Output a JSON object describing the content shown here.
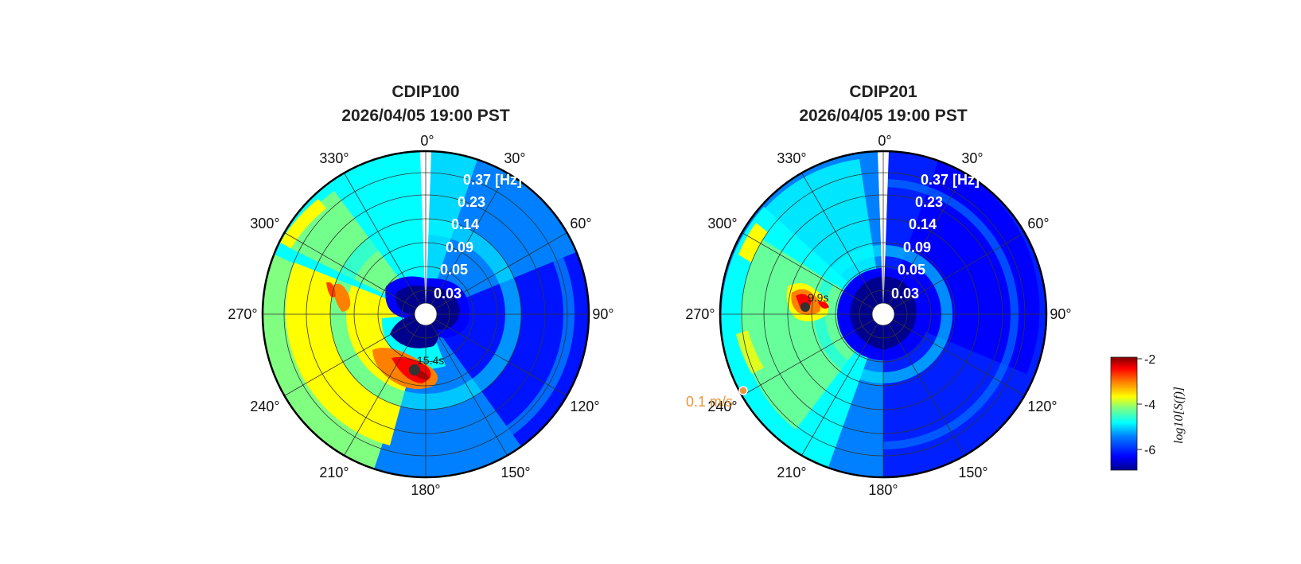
{
  "chart_data": [
    {
      "type": "heatmap",
      "subtype": "polar-directional-spectrum",
      "title": "CDIP100",
      "subtitle": "2026/04/05 19:00 PST",
      "angular_ticks": [
        "0°",
        "30°",
        "60°",
        "90°",
        "120°",
        "150°",
        "180°",
        "210°",
        "240°",
        "270°",
        "300°",
        "330°"
      ],
      "radial_ticks": [
        "0.03",
        "0.05",
        "0.09",
        "0.14",
        "0.23",
        "0.37 [Hz]"
      ],
      "peak": {
        "label": "15.4s",
        "direction_deg": 190,
        "frequency_hz": 0.065
      },
      "energy_features": [
        {
          "direction_from_deg": 180,
          "direction_to_deg": 360,
          "level": -4.5
        },
        {
          "direction_from_deg": 175,
          "direction_to_deg": 215,
          "level": -2.5
        },
        {
          "direction_from_deg": 262,
          "direction_to_deg": 282,
          "level": -3.3
        }
      ]
    },
    {
      "type": "heatmap",
      "subtype": "polar-directional-spectrum",
      "title": "CDIP201",
      "subtitle": "2026/04/05 19:00 PST",
      "angular_ticks": [
        "0°",
        "30°",
        "60°",
        "90°",
        "120°",
        "150°",
        "180°",
        "210°",
        "240°",
        "270°",
        "300°",
        "330°"
      ],
      "radial_ticks": [
        "0.03",
        "0.05",
        "0.09",
        "0.14",
        "0.23",
        "0.37 [Hz]"
      ],
      "peak": {
        "label": "9.9s",
        "direction_deg": 275,
        "frequency_hz": 0.1
      },
      "wind": {
        "label": "0.1 m/s",
        "direction_deg": 240
      },
      "energy_features": [
        {
          "direction_from_deg": 200,
          "direction_to_deg": 340,
          "level": -5.0
        },
        {
          "direction_from_deg": 262,
          "direction_to_deg": 290,
          "level": -3.0
        }
      ]
    }
  ],
  "colorbar": {
    "range": [
      -7,
      -2
    ],
    "ticks": [
      -2,
      -4,
      -6
    ],
    "tick_labels": [
      "-2",
      "-4",
      "-6"
    ],
    "label": "log10[S(f)]",
    "colormap": [
      "#00008f",
      "#0000ff",
      "#0080ff",
      "#00ffff",
      "#80ff80",
      "#ffff00",
      "#ff8000",
      "#ff0000",
      "#800000"
    ]
  }
}
